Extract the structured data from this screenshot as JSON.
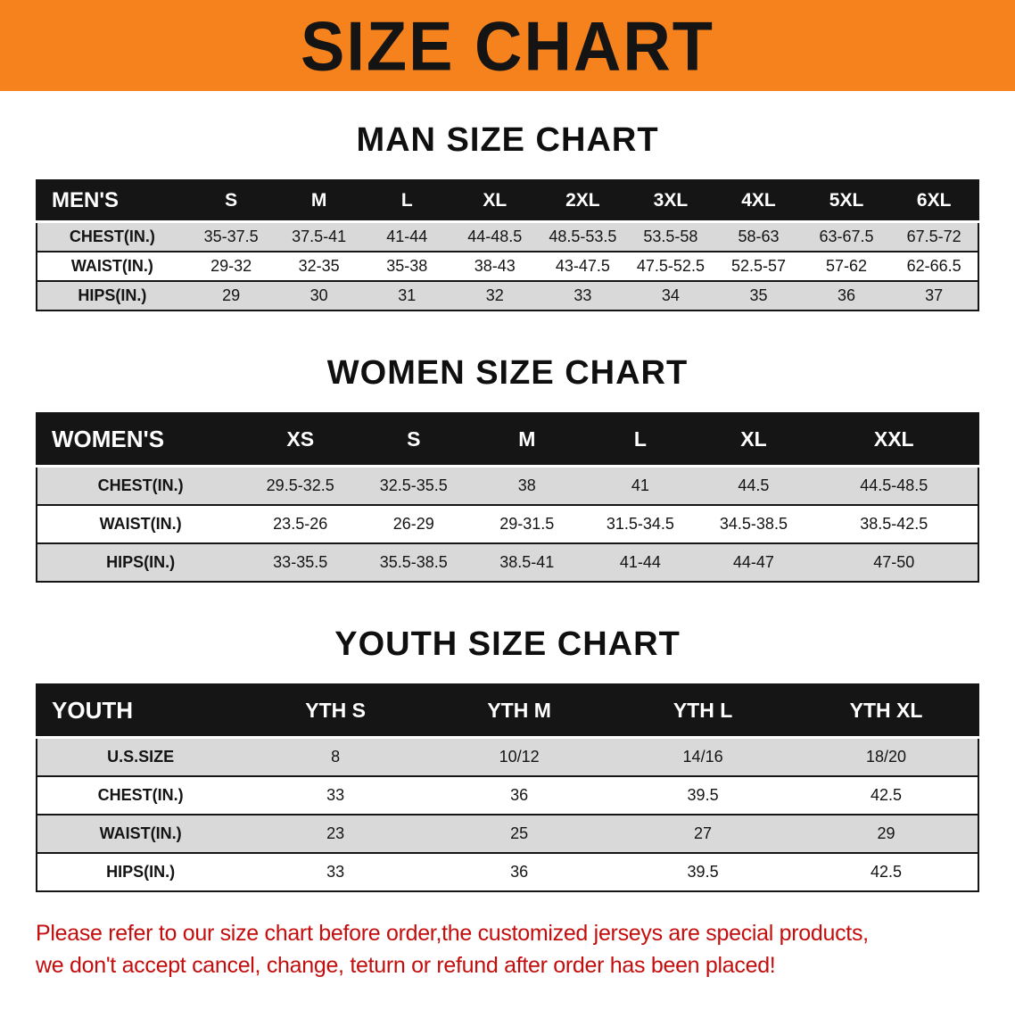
{
  "banner": {
    "title": "SIZE CHART"
  },
  "men": {
    "heading": "MAN SIZE CHART",
    "table": {
      "header": [
        "MEN'S",
        "S",
        "M",
        "L",
        "XL",
        "2XL",
        "3XL",
        "4XL",
        "5XL",
        "6XL"
      ],
      "rows": [
        [
          "CHEST(IN.)",
          "35-37.5",
          "37.5-41",
          "41-44",
          "44-48.5",
          "48.5-53.5",
          "53.5-58",
          "58-63",
          "63-67.5",
          "67.5-72"
        ],
        [
          "WAIST(IN.)",
          "29-32",
          "32-35",
          "35-38",
          "38-43",
          "43-47.5",
          "47.5-52.5",
          "52.5-57",
          "57-62",
          "62-66.5"
        ],
        [
          "HIPS(IN.)",
          "29",
          "30",
          "31",
          "32",
          "33",
          "34",
          "35",
          "36",
          "37"
        ]
      ]
    }
  },
  "women": {
    "heading": "WOMEN SIZE CHART",
    "table": {
      "header": [
        "WOMEN'S",
        "XS",
        "S",
        "M",
        "L",
        "XL",
        "XXL"
      ],
      "rows": [
        [
          "CHEST(IN.)",
          "29.5-32.5",
          "32.5-35.5",
          "38",
          "41",
          "44.5",
          "44.5-48.5"
        ],
        [
          "WAIST(IN.)",
          "23.5-26",
          "26-29",
          "29-31.5",
          "31.5-34.5",
          "34.5-38.5",
          "38.5-42.5"
        ],
        [
          "HIPS(IN.)",
          "33-35.5",
          "35.5-38.5",
          "38.5-41",
          "41-44",
          "44-47",
          "47-50"
        ]
      ]
    }
  },
  "youth": {
    "heading": "YOUTH SIZE CHART",
    "table": {
      "header": [
        "YOUTH",
        "YTH S",
        "YTH M",
        "YTH L",
        "YTH XL"
      ],
      "rows": [
        [
          "U.S.SIZE",
          "8",
          "10/12",
          "14/16",
          "18/20"
        ],
        [
          "CHEST(IN.)",
          "33",
          "36",
          "39.5",
          "42.5"
        ],
        [
          "WAIST(IN.)",
          "23",
          "25",
          "27",
          "29"
        ],
        [
          "HIPS(IN.)",
          "33",
          "36",
          "39.5",
          "42.5"
        ]
      ]
    }
  },
  "disclaimer": {
    "lines": [
      "Please refer to our size chart before order,the customized jerseys are special products,",
      "we don't accept cancel, change, teturn or refund after order has been placed!"
    ]
  },
  "colors": {
    "banner_bg": "#f6821e",
    "table_header_bg": "#151515",
    "row_alt_bg": "#d9d9d9",
    "disclaimer_text": "#c40d0d"
  }
}
